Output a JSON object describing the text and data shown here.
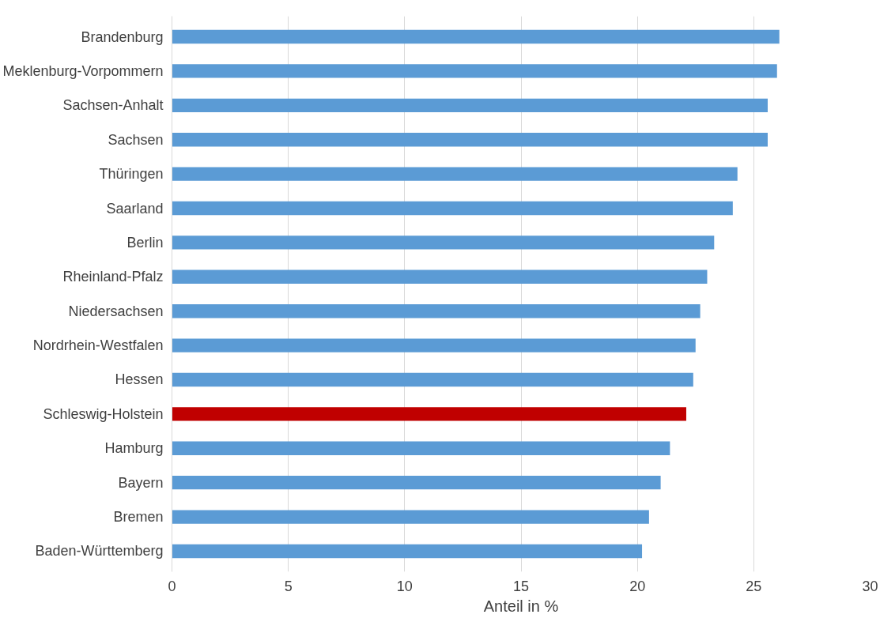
{
  "chart_data": {
    "type": "bar",
    "orientation": "horizontal",
    "xlabel": "Anteil in %",
    "categories": [
      "Brandenburg",
      "Meklenburg-Vorpommern",
      "Sachsen-Anhalt",
      "Sachsen",
      "Thüringen",
      "Saarland",
      "Berlin",
      "Rheinland-Pfalz",
      "Niedersachsen",
      "Nordrhein-Westfalen",
      "Hessen",
      "Schleswig-Holstein",
      "Hamburg",
      "Bayern",
      "Bremen",
      "Baden-Württemberg"
    ],
    "values": [
      26.1,
      26.0,
      25.6,
      25.6,
      24.3,
      24.1,
      23.3,
      23.0,
      22.7,
      22.5,
      22.4,
      22.1,
      21.4,
      21.0,
      20.5,
      20.2
    ],
    "colors": [
      "#5b9bd5",
      "#5b9bd5",
      "#5b9bd5",
      "#5b9bd5",
      "#5b9bd5",
      "#5b9bd5",
      "#5b9bd5",
      "#5b9bd5",
      "#5b9bd5",
      "#5b9bd5",
      "#5b9bd5",
      "#c00000",
      "#5b9bd5",
      "#5b9bd5",
      "#5b9bd5",
      "#5b9bd5"
    ],
    "xlim": [
      0,
      30
    ],
    "xticks": [
      0,
      5,
      10,
      15,
      20,
      25,
      30
    ],
    "grid": "x"
  }
}
